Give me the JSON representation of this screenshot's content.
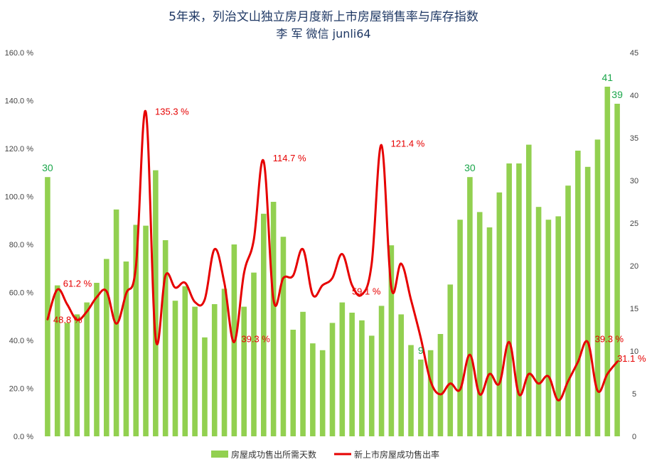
{
  "chart_data": {
    "type": "bar",
    "title": "5年来，列治文山独立房月度新上市房屋销售率与库存指数",
    "subtitle": "李 军 微信 junli64",
    "left_axis": {
      "range": [
        0,
        160
      ],
      "ticks": [
        0,
        20,
        40,
        60,
        80,
        100,
        120,
        140,
        160
      ],
      "tick_labels": [
        "0.0 %",
        "20.0 %",
        "40.0 %",
        "60.0 %",
        "80.0 %",
        "100.0 %",
        "120.0 %",
        "140.0 %",
        "160.0 %"
      ]
    },
    "right_axis": {
      "range": [
        0,
        45
      ],
      "ticks": [
        0,
        5,
        10,
        15,
        20,
        25,
        30,
        35,
        40,
        45
      ],
      "tick_labels": [
        "0",
        "5",
        "10",
        "15",
        "20",
        "25",
        "30",
        "35",
        "40",
        "45"
      ]
    },
    "grid": false,
    "legend_placement": "bottom",
    "series": [
      {
        "name": "房屋成功售出所需天数",
        "kind": "bar",
        "axis": "right",
        "color": "#92d050",
        "values": [
          30.4,
          17.7,
          13.3,
          14.3,
          15.7,
          18.0,
          20.8,
          26.6,
          20.5,
          24.8,
          24.7,
          31.2,
          23.0,
          15.9,
          17.6,
          15.2,
          11.6,
          15.5,
          17.3,
          22.5,
          15.2,
          19.2,
          26.1,
          27.5,
          23.4,
          12.5,
          14.6,
          10.9,
          10.1,
          13.3,
          15.7,
          14.5,
          13.6,
          11.8,
          15.3,
          22.4,
          14.3,
          10.7,
          9.0,
          10.1,
          12.0,
          17.8,
          25.4,
          30.4,
          26.3,
          24.5,
          28.6,
          32.0,
          32.0,
          34.2,
          26.9,
          25.4,
          25.8,
          29.4,
          33.5,
          31.6,
          34.8,
          41.0,
          39.0
        ]
      },
      {
        "name": "新上市房屋成功售出率",
        "kind": "line",
        "axis": "left",
        "color": "#e60000",
        "values": [
          48.8,
          61.2,
          55.0,
          48.6,
          52.0,
          58.0,
          60.5,
          47.0,
          59.5,
          71.0,
          135.3,
          41.0,
          67.0,
          62.0,
          64.0,
          56.0,
          57.0,
          78.0,
          64.0,
          39.3,
          68.0,
          82.0,
          114.7,
          57.0,
          66.0,
          67.0,
          78.0,
          59.0,
          63.0,
          66.0,
          76.0,
          63.0,
          59.1,
          72.0,
          121.4,
          62.0,
          72.0,
          57.0,
          41.0,
          23.0,
          17.5,
          22.0,
          19.5,
          34.0,
          17.5,
          26.0,
          22.0,
          39.3,
          17.5,
          26.0,
          22.0,
          25.0,
          15.0,
          23.0,
          31.0,
          39.3,
          19.0,
          26.0,
          31.1
        ]
      }
    ],
    "data_labels": {
      "line": [
        {
          "index": 0,
          "text": "48.8 %"
        },
        {
          "index": 1,
          "text": "61.2 %"
        },
        {
          "index": 10,
          "text": "135.3 %"
        },
        {
          "index": 19,
          "text": "39.3 %"
        },
        {
          "index": 22,
          "text": "114.7 %"
        },
        {
          "index": 32,
          "text": "59.1 %"
        },
        {
          "index": 34,
          "text": "121.4 %"
        },
        {
          "index": 55,
          "text": "39.3 %"
        },
        {
          "index": 58,
          "text": "31.1 %"
        }
      ],
      "bar": [
        {
          "index": 0,
          "text": "30"
        },
        {
          "index": 38,
          "text": "9"
        },
        {
          "index": 43,
          "text": "30"
        },
        {
          "index": 57,
          "text": "41"
        },
        {
          "index": 58,
          "text": "39"
        }
      ]
    }
  }
}
